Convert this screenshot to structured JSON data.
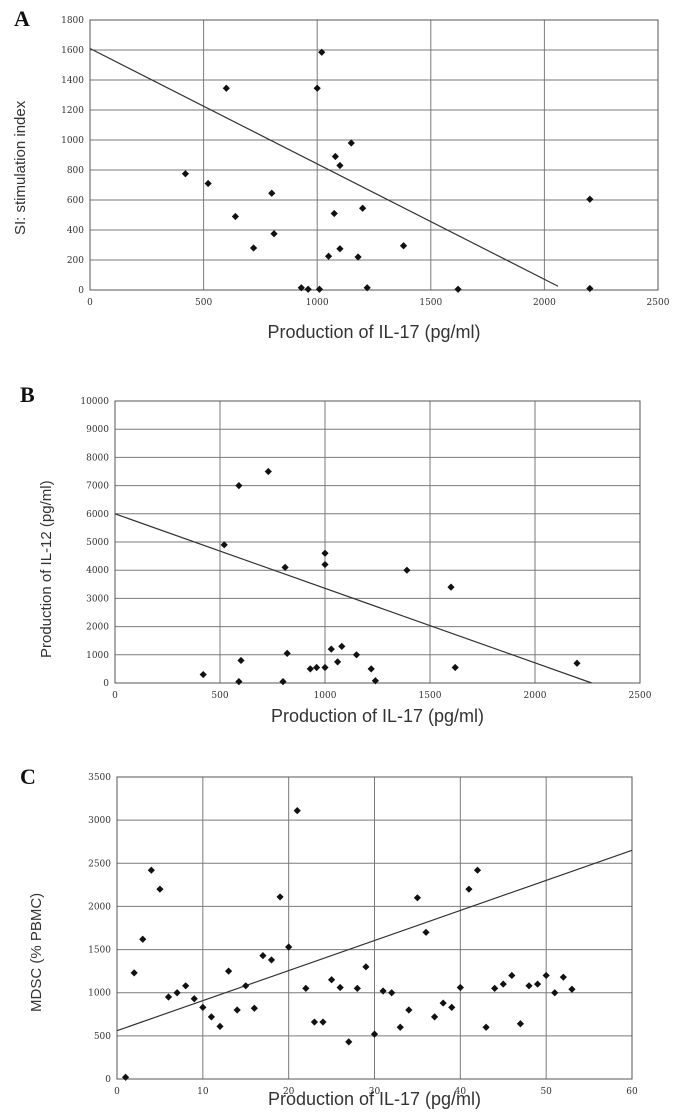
{
  "panels": [
    {
      "letter": "A",
      "xlabel": "Production of IL-17  (pg/ml)",
      "ylabel": "SI: stimulation index"
    },
    {
      "letter": "B",
      "xlabel": "Production of IL-17  (pg/ml)",
      "ylabel": "Production of IL-12 (pg/ml)"
    },
    {
      "letter": "C",
      "xlabel": "Production of IL-17  (pg/ml)",
      "ylabel": "MDSC  (% PBMC)"
    }
  ],
  "chart_data": [
    {
      "type": "scatter",
      "title": "",
      "xlabel": "Production of IL-17  (pg/ml)",
      "ylabel": "SI: stimulation index",
      "xlim": [
        0,
        2500
      ],
      "ylim": [
        0,
        1800
      ],
      "xticks": [
        0,
        500,
        1000,
        1500,
        2000,
        2500
      ],
      "yticks": [
        0,
        200,
        400,
        600,
        800,
        1000,
        1200,
        1400,
        1600,
        1800
      ],
      "grid": true,
      "points": [
        [
          420,
          775
        ],
        [
          520,
          710
        ],
        [
          600,
          1345
        ],
        [
          640,
          490
        ],
        [
          720,
          280
        ],
        [
          800,
          645
        ],
        [
          810,
          375
        ],
        [
          930,
          15
        ],
        [
          960,
          5
        ],
        [
          1000,
          1345
        ],
        [
          1010,
          5
        ],
        [
          1020,
          1585
        ],
        [
          1050,
          225
        ],
        [
          1075,
          510
        ],
        [
          1080,
          890
        ],
        [
          1100,
          830
        ],
        [
          1100,
          275
        ],
        [
          1150,
          980
        ],
        [
          1180,
          220
        ],
        [
          1200,
          545
        ],
        [
          1220,
          15
        ],
        [
          1380,
          295
        ],
        [
          1620,
          5
        ],
        [
          2200,
          605
        ],
        [
          2200,
          10
        ]
      ],
      "trendline": [
        [
          0,
          1610
        ],
        [
          2060,
          25
        ]
      ]
    },
    {
      "type": "scatter",
      "title": "",
      "xlabel": "Production of IL-17  (pg/ml)",
      "ylabel": "Production of IL-12 (pg/ml)",
      "xlim": [
        0,
        2500
      ],
      "ylim": [
        0,
        10000
      ],
      "xticks": [
        0,
        500,
        1000,
        1500,
        2000,
        2500
      ],
      "yticks": [
        0,
        1000,
        2000,
        3000,
        4000,
        5000,
        6000,
        7000,
        8000,
        9000,
        10000
      ],
      "grid": true,
      "points": [
        [
          420,
          300
        ],
        [
          520,
          4900
        ],
        [
          590,
          7000
        ],
        [
          590,
          50
        ],
        [
          600,
          800
        ],
        [
          730,
          7500
        ],
        [
          800,
          50
        ],
        [
          810,
          4100
        ],
        [
          820,
          1050
        ],
        [
          930,
          500
        ],
        [
          960,
          550
        ],
        [
          1000,
          4600
        ],
        [
          1000,
          4200
        ],
        [
          1000,
          550
        ],
        [
          1030,
          1200
        ],
        [
          1060,
          750
        ],
        [
          1080,
          1300
        ],
        [
          1150,
          1000
        ],
        [
          1220,
          500
        ],
        [
          1240,
          80
        ],
        [
          1390,
          4000
        ],
        [
          1600,
          3400
        ],
        [
          1620,
          550
        ],
        [
          2200,
          700
        ]
      ],
      "trendline": [
        [
          0,
          6000
        ],
        [
          2270,
          0
        ]
      ]
    },
    {
      "type": "scatter",
      "title": "",
      "xlabel": "Production of IL-17  (pg/ml)",
      "ylabel": "MDSC  (% PBMC)",
      "xlim": [
        0,
        60
      ],
      "ylim": [
        0,
        3500
      ],
      "xticks": [
        0,
        10,
        20,
        30,
        40,
        50,
        60
      ],
      "yticks": [
        0,
        500,
        1000,
        1500,
        2000,
        2500,
        3000,
        3500
      ],
      "grid": true,
      "points": [
        [
          1,
          20
        ],
        [
          2,
          1230
        ],
        [
          3,
          1620
        ],
        [
          4,
          2420
        ],
        [
          5,
          2200
        ],
        [
          6,
          950
        ],
        [
          7,
          1000
        ],
        [
          8,
          1080
        ],
        [
          9,
          930
        ],
        [
          10,
          830
        ],
        [
          11,
          720
        ],
        [
          12,
          610
        ],
        [
          13,
          1250
        ],
        [
          14,
          800
        ],
        [
          15,
          1080
        ],
        [
          16,
          820
        ],
        [
          17,
          1430
        ],
        [
          18,
          1380
        ],
        [
          19,
          2110
        ],
        [
          20,
          1530
        ],
        [
          21,
          3110
        ],
        [
          22,
          1050
        ],
        [
          23,
          660
        ],
        [
          24,
          660
        ],
        [
          25,
          1150
        ],
        [
          26,
          1060
        ],
        [
          27,
          430
        ],
        [
          28,
          1050
        ],
        [
          29,
          1300
        ],
        [
          30,
          520
        ],
        [
          31,
          1020
        ],
        [
          32,
          1000
        ],
        [
          33,
          600
        ],
        [
          34,
          800
        ],
        [
          35,
          2100
        ],
        [
          36,
          1700
        ],
        [
          37,
          720
        ],
        [
          38,
          880
        ],
        [
          39,
          830
        ],
        [
          40,
          1060
        ],
        [
          41,
          2200
        ],
        [
          42,
          2420
        ],
        [
          43,
          600
        ],
        [
          44,
          1050
        ],
        [
          45,
          1100
        ],
        [
          46,
          1200
        ],
        [
          47,
          640
        ],
        [
          48,
          1080
        ],
        [
          49,
          1100
        ],
        [
          50,
          1200
        ],
        [
          51,
          1000
        ],
        [
          52,
          1180
        ],
        [
          53,
          1040
        ]
      ],
      "trendline": [
        [
          0,
          560
        ],
        [
          60,
          2650
        ]
      ]
    }
  ]
}
